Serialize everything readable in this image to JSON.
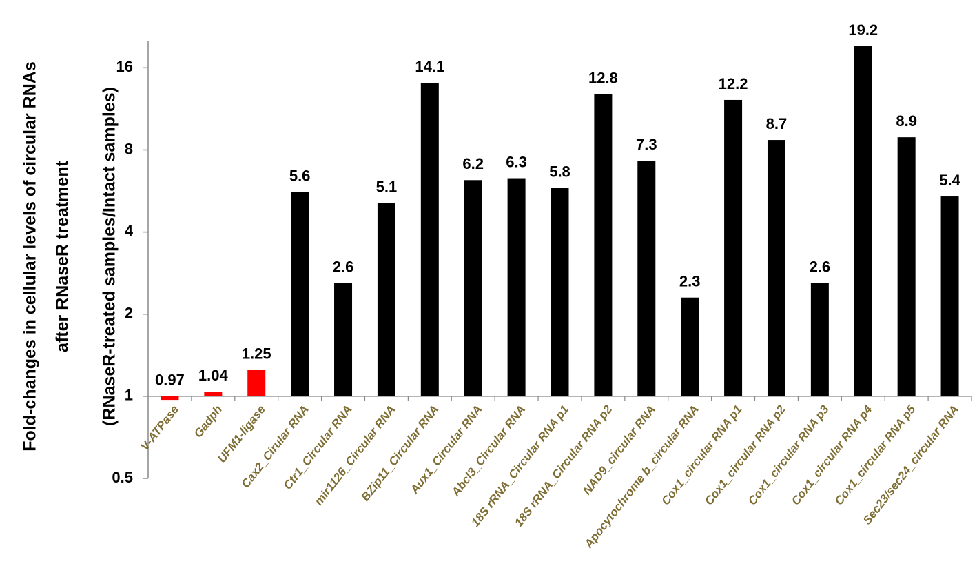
{
  "chart_data": {
    "type": "bar",
    "y_label": [
      "Fold-changes in cellular levels of circular RNAs",
      "after RNaseR treatment",
      "(RNaseR-treated samples/Intact samples)"
    ],
    "categories": [
      "V-ATPase",
      "Gadph",
      "UFM1-ligase",
      "Cax2_Cirular RNA",
      "Ctr1_Circular RNA",
      "mir1126_Circular RNA",
      "BZip11_Circular RNA",
      "Aux1_Circular RNA",
      "Abcl3_Circular RNA",
      "18S rRNA_Circular RNA p1",
      "18S rRNA_Circular RNA p2",
      "NAD9_circular RNA",
      "Apocytochrome b_circular RNA",
      "Cox1_circular RNA p1",
      "Cox1_circular RNA p2",
      "Cox1_circular RNA p3",
      "Cox1_circular RNA p4",
      "Cox1_circular RNA p5",
      "Sec23/sec24_circular RNA"
    ],
    "values": [
      0.97,
      1.04,
      1.25,
      5.6,
      2.6,
      5.1,
      14.1,
      6.2,
      6.3,
      5.8,
      12.8,
      7.3,
      2.3,
      12.2,
      8.7,
      2.6,
      19.2,
      8.9,
      5.4
    ],
    "colors": [
      "#ff0000",
      "#ff0000",
      "#ff0000",
      "#000000",
      "#000000",
      "#000000",
      "#000000",
      "#000000",
      "#000000",
      "#000000",
      "#000000",
      "#000000",
      "#000000",
      "#000000",
      "#000000",
      "#000000",
      "#000000",
      "#000000",
      "#000000"
    ],
    "log_scale": true,
    "ylim": [
      0.5,
      20
    ],
    "yticks": [
      0.5,
      1,
      2,
      4,
      8,
      16
    ]
  }
}
